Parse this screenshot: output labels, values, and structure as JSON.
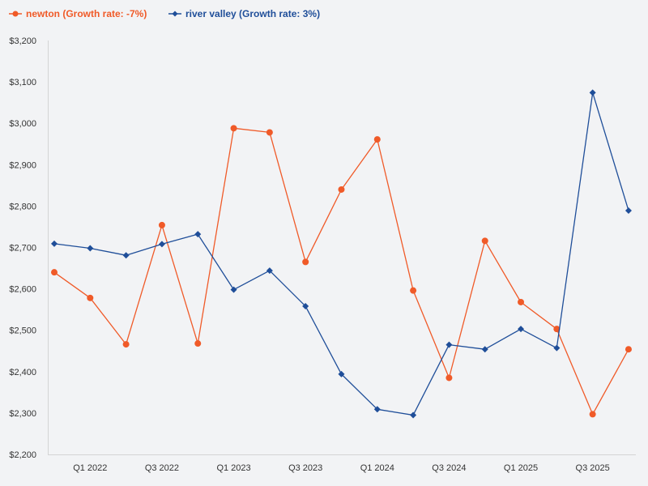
{
  "chart_data": {
    "type": "line",
    "title": "",
    "xlabel": "",
    "ylabel": "",
    "ylim": [
      2200,
      3200
    ],
    "y_ticks": [
      "$2,200",
      "$2,300",
      "$2,400",
      "$2,500",
      "$2,600",
      "$2,700",
      "$2,800",
      "$2,900",
      "$3,000",
      "$3,100",
      "$3,200"
    ],
    "x_tick_labels": [
      "Q1 2022",
      "Q3 2022",
      "Q1 2023",
      "Q3 2023",
      "Q1 2024",
      "Q3 2024",
      "Q1 2025",
      "Q3 2025"
    ],
    "categories": [
      "Q4 2021",
      "Q1 2022",
      "Q2 2022",
      "Q3 2022",
      "Q4 2022",
      "Q1 2023",
      "Q2 2023",
      "Q3 2023",
      "Q4 2023",
      "Q1 2024",
      "Q2 2024",
      "Q3 2024",
      "Q4 2024",
      "Q1 2025",
      "Q2 2025",
      "Q3 2025",
      "Q4 2025"
    ],
    "legend_position": "top-left",
    "series": [
      {
        "name": "newton (Growth rate: -7%)",
        "color": "#f05a28",
        "marker": "circle",
        "values": [
          2640,
          2578,
          2466,
          2754,
          2468,
          2988,
          2978,
          2665,
          2840,
          2961,
          2596,
          2385,
          2716,
          2568,
          2503,
          2297,
          2454
        ]
      },
      {
        "name": "river valley (Growth rate: 3%)",
        "color": "#1f4e99",
        "marker": "diamond",
        "values": [
          2709,
          2698,
          2681,
          2708,
          2732,
          2598,
          2644,
          2558,
          2394,
          2309,
          2295,
          2465,
          2454,
          2503,
          2457,
          3074,
          2789
        ]
      }
    ]
  }
}
